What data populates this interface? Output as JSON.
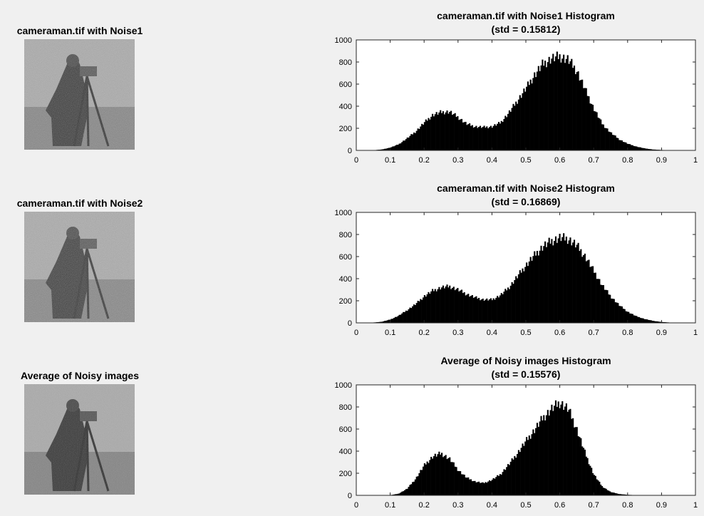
{
  "panels": [
    {
      "image_title": "cameraman.tif with Noise1"
    },
    {
      "image_title": "cameraman.tif with Noise2"
    },
    {
      "image_title": "Average of Noisy images"
    }
  ],
  "chart_data": [
    {
      "type": "bar",
      "title": "cameraman.tif with Noise1 Histogram",
      "subtitle": "(std = 0.15812)",
      "xlim": [
        0,
        1
      ],
      "ylim": [
        0,
        1000
      ],
      "xticks": [
        "0",
        "0.1",
        "0.2",
        "0.3",
        "0.4",
        "0.5",
        "0.6",
        "0.7",
        "0.8",
        "0.9",
        "1"
      ],
      "yticks": [
        "0",
        "200",
        "400",
        "600",
        "800",
        "1000"
      ],
      "x": [
        0.0,
        0.025,
        0.05,
        0.075,
        0.1,
        0.125,
        0.15,
        0.175,
        0.2,
        0.225,
        0.25,
        0.275,
        0.3,
        0.325,
        0.35,
        0.375,
        0.4,
        0.425,
        0.45,
        0.475,
        0.5,
        0.525,
        0.55,
        0.575,
        0.6,
        0.625,
        0.65,
        0.675,
        0.7,
        0.725,
        0.75,
        0.775,
        0.8,
        0.825,
        0.85,
        0.875,
        0.9,
        0.925,
        0.95,
        0.975,
        1.0
      ],
      "values": [
        0,
        0,
        2,
        8,
        25,
        55,
        110,
        170,
        250,
        320,
        345,
        350,
        300,
        240,
        215,
        210,
        215,
        250,
        340,
        450,
        560,
        680,
        780,
        830,
        850,
        820,
        720,
        550,
        380,
        240,
        160,
        100,
        60,
        35,
        18,
        8,
        4,
        2,
        0,
        0,
        0
      ]
    },
    {
      "type": "bar",
      "title": "cameraman.tif with Noise2 Histogram",
      "subtitle": "(std = 0.16869)",
      "xlim": [
        0,
        1
      ],
      "ylim": [
        0,
        1000
      ],
      "xticks": [
        "0",
        "0.1",
        "0.2",
        "0.3",
        "0.4",
        "0.5",
        "0.6",
        "0.7",
        "0.8",
        "0.9",
        "1"
      ],
      "yticks": [
        "0",
        "200",
        "400",
        "600",
        "800",
        "1000"
      ],
      "x": [
        0.0,
        0.025,
        0.05,
        0.075,
        0.1,
        0.125,
        0.15,
        0.175,
        0.2,
        0.225,
        0.25,
        0.275,
        0.3,
        0.325,
        0.35,
        0.375,
        0.4,
        0.425,
        0.45,
        0.475,
        0.5,
        0.525,
        0.55,
        0.575,
        0.6,
        0.625,
        0.65,
        0.675,
        0.7,
        0.725,
        0.75,
        0.775,
        0.8,
        0.825,
        0.85,
        0.875,
        0.9,
        0.925,
        0.95,
        0.975,
        1.0
      ],
      "values": [
        0,
        0,
        3,
        10,
        30,
        65,
        115,
        170,
        240,
        290,
        320,
        330,
        300,
        260,
        230,
        210,
        210,
        250,
        320,
        420,
        520,
        610,
        690,
        740,
        770,
        760,
        700,
        600,
        470,
        340,
        240,
        160,
        100,
        60,
        35,
        18,
        8,
        3,
        1,
        0,
        0
      ]
    },
    {
      "type": "bar",
      "title": "Average of Noisy images Histogram",
      "subtitle": "(std = 0.15576)",
      "xlim": [
        0,
        1
      ],
      "ylim": [
        0,
        1000
      ],
      "xticks": [
        "0",
        "0.1",
        "0.2",
        "0.3",
        "0.4",
        "0.5",
        "0.6",
        "0.7",
        "0.8",
        "0.9",
        "1"
      ],
      "yticks": [
        "0",
        "200",
        "400",
        "600",
        "800",
        "1000"
      ],
      "x": [
        0.0,
        0.025,
        0.05,
        0.075,
        0.1,
        0.125,
        0.15,
        0.175,
        0.2,
        0.225,
        0.25,
        0.275,
        0.3,
        0.325,
        0.35,
        0.375,
        0.4,
        0.425,
        0.45,
        0.475,
        0.5,
        0.525,
        0.55,
        0.575,
        0.6,
        0.625,
        0.65,
        0.675,
        0.7,
        0.725,
        0.75,
        0.775,
        0.8,
        0.825,
        0.85,
        0.875,
        0.9,
        0.925,
        0.95,
        0.975,
        1.0
      ],
      "values": [
        0,
        0,
        0,
        0,
        2,
        15,
        60,
        150,
        270,
        350,
        380,
        330,
        230,
        160,
        125,
        110,
        140,
        190,
        280,
        380,
        490,
        590,
        700,
        780,
        840,
        780,
        600,
        380,
        190,
        80,
        30,
        12,
        5,
        2,
        0,
        0,
        0,
        0,
        0,
        0,
        0
      ]
    }
  ]
}
